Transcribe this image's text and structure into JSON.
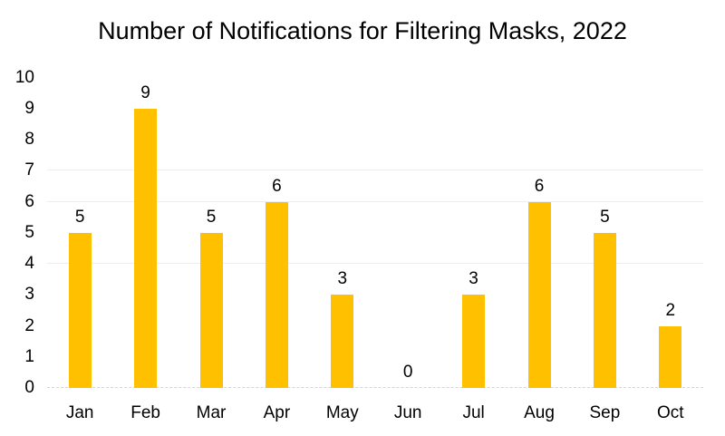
{
  "chart_data": {
    "type": "bar",
    "title": "Number of Notifications for Filtering Masks, 2022",
    "categories": [
      "Jan",
      "Feb",
      "Mar",
      "Apr",
      "May",
      "Jun",
      "Jul",
      "Aug",
      "Sep",
      "Oct"
    ],
    "values": [
      5,
      9,
      5,
      6,
      3,
      0,
      3,
      6,
      5,
      2
    ],
    "xlabel": "",
    "ylabel": "",
    "ylim": [
      0,
      10
    ],
    "yticks": [
      0,
      1,
      2,
      3,
      4,
      5,
      6,
      7,
      8,
      9,
      10
    ],
    "show_data_labels": true,
    "legend_position": "none",
    "grid": "horizontal-faint",
    "visible_gridlines_y": [
      4,
      6,
      7
    ],
    "colors": {
      "bar": "#FFC000",
      "text": "#000000",
      "gridline": "#EDEDED",
      "baseline": "#D4D4D4",
      "background": "#FFFFFF"
    }
  }
}
